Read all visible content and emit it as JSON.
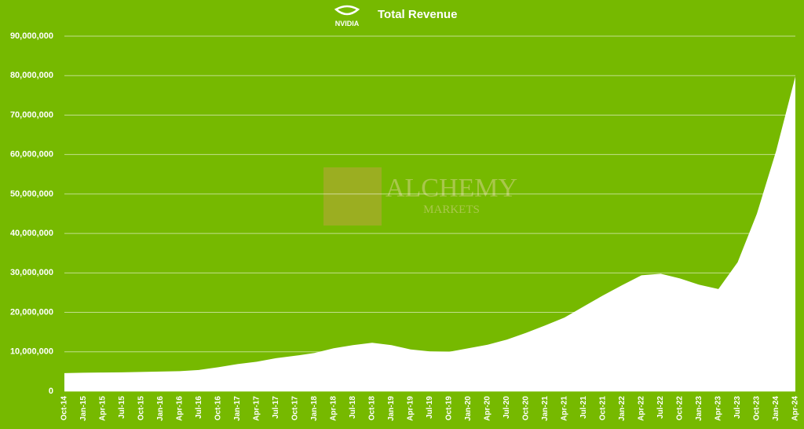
{
  "chart_data": {
    "type": "area",
    "title": "Total Revenue",
    "logo": "NVIDIA",
    "watermark": [
      "ALCHEMY",
      "MARKETS"
    ],
    "background": "#76b900",
    "categories": [
      "Oct-14",
      "Jan-15",
      "Apr-15",
      "Jul-15",
      "Oct-15",
      "Jan-16",
      "Apr-16",
      "Jul-16",
      "Oct-16",
      "Jan-17",
      "Apr-17",
      "Jul-17",
      "Oct-17",
      "Jan-18",
      "Apr-18",
      "Jul-18",
      "Oct-18",
      "Jan-19",
      "Apr-19",
      "Jul-19",
      "Oct-19",
      "Jan-20",
      "Apr-20",
      "Jul-20",
      "Oct-20",
      "Jan-21",
      "Apr-21",
      "Jul-21",
      "Oct-21",
      "Jan-22",
      "Apr-22",
      "Jul-22",
      "Oct-22",
      "Jan-23",
      "Apr-23",
      "Jul-23",
      "Oct-23",
      "Jan-24",
      "Apr-24"
    ],
    "values": [
      4600000,
      4700000,
      4750000,
      4800000,
      4900000,
      5000000,
      5100000,
      5400000,
      6100000,
      6900000,
      7500000,
      8400000,
      9000000,
      9700000,
      10900000,
      11700000,
      12300000,
      11700000,
      10600000,
      10100000,
      10000000,
      10900000,
      11800000,
      13100000,
      14800000,
      16700000,
      18700000,
      21500000,
      24300000,
      26900000,
      29400000,
      29800000,
      28600000,
      27000000,
      25900000,
      32700000,
      45000000,
      60900000,
      79800000
    ],
    "color": "#ffffff",
    "ylim": [
      0,
      90000000
    ],
    "yticks": [
      0,
      {
        "value": 10000000,
        "label": "10,000,000"
      },
      {
        "value": 20000000,
        "label": "20,000,000"
      },
      {
        "value": 30000000,
        "label": "30,000,000"
      },
      {
        "value": 40000000,
        "label": "40,000,000"
      },
      {
        "value": 50000000,
        "label": "50,000,000"
      },
      {
        "value": 60000000,
        "label": "60,000,000"
      },
      {
        "value": 70000000,
        "label": "70,000,000"
      },
      {
        "value": 80000000,
        "label": "80,000,000"
      },
      {
        "value": 90000000,
        "label": "90,000,000"
      }
    ],
    "grid": true
  }
}
